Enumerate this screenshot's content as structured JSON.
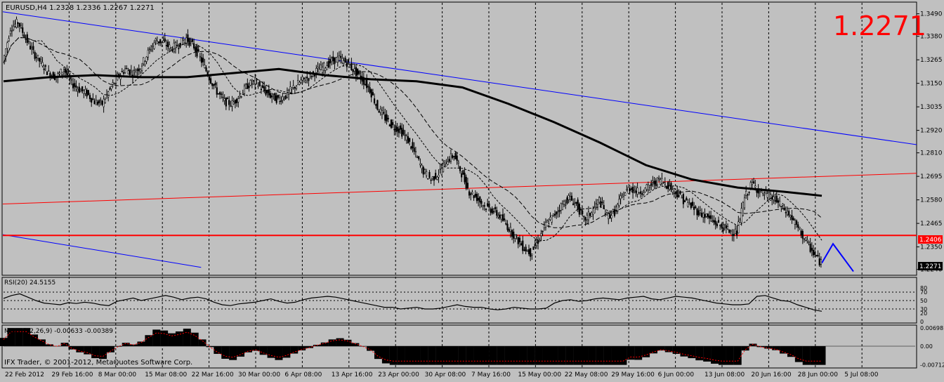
{
  "header": {
    "symbol_info": "EURUSD,H4  1.2328 1.2336 1.2267 1.2271"
  },
  "price_display": "1.2271",
  "footer": {
    "copyright": "IFX Trader, © 2001-2012, MetaQuotes Software Corp."
  },
  "colors": {
    "background": "#c0c0c0",
    "candles": "#000000",
    "trendline_blue": "#0000ff",
    "trendline_red": "#ff0000",
    "support_line": "#ff0000",
    "price_marker": "#ff0000",
    "projection": "#0000ff"
  },
  "chart_data": [
    {
      "type": "candlestick",
      "title": "EURUSD,H4",
      "ohlc_last": {
        "open": 1.2328,
        "high": 1.2336,
        "low": 1.2267,
        "close": 1.2271
      },
      "ylim": [
        1.2225,
        1.353
      ],
      "y_ticks": [
        "1.3490",
        "1.3380",
        "1.3265",
        "1.3150",
        "1.3035",
        "1.2920",
        "1.2810",
        "1.2695",
        "1.2580",
        "1.2465",
        "1.2350",
        "1.2240"
      ],
      "x_ticks": [
        "22 Feb 2012",
        "29 Feb 16:00",
        "8 Mar 00:00",
        "15 Mar 08:00",
        "22 Mar 16:00",
        "30 Mar 00:00",
        "6 Apr 08:00",
        "13 Apr 16:00",
        "23 Apr 00:00",
        "30 Apr 08:00",
        "7 May 16:00",
        "15 May 00:00",
        "22 May 08:00",
        "29 May 16:00",
        "6 Jun 00:00",
        "13 Jun 08:00",
        "20 Jun 16:00",
        "28 Jun 00:00",
        "5 Jul 08:00"
      ],
      "support_level": 1.2406,
      "support_label": "1.2406",
      "last_price_label": "1.2271",
      "close_path": [
        [
          0,
          1.325
        ],
        [
          1,
          1.342
        ],
        [
          2,
          1.345
        ],
        [
          3,
          1.337
        ],
        [
          4,
          1.33
        ],
        [
          5,
          1.325
        ],
        [
          6,
          1.32
        ],
        [
          7,
          1.318
        ],
        [
          8,
          1.322
        ],
        [
          9,
          1.315
        ],
        [
          10,
          1.312
        ],
        [
          11,
          1.31
        ],
        [
          12,
          1.306
        ],
        [
          13,
          1.305
        ],
        [
          14,
          1.312
        ],
        [
          15,
          1.318
        ],
        [
          16,
          1.322
        ],
        [
          17,
          1.32
        ],
        [
          18,
          1.323
        ],
        [
          19,
          1.33
        ],
        [
          20,
          1.336
        ],
        [
          21,
          1.335
        ],
        [
          22,
          1.332
        ],
        [
          23,
          1.334
        ],
        [
          24,
          1.337
        ],
        [
          25,
          1.333
        ],
        [
          26,
          1.326
        ],
        [
          27,
          1.318
        ],
        [
          28,
          1.311
        ],
        [
          29,
          1.306
        ],
        [
          30,
          1.305
        ],
        [
          31,
          1.309
        ],
        [
          32,
          1.314
        ],
        [
          33,
          1.316
        ],
        [
          34,
          1.312
        ],
        [
          35,
          1.309
        ],
        [
          36,
          1.307
        ],
        [
          37,
          1.309
        ],
        [
          38,
          1.313
        ],
        [
          39,
          1.316
        ],
        [
          40,
          1.318
        ],
        [
          41,
          1.321
        ],
        [
          42,
          1.323
        ],
        [
          43,
          1.326
        ],
        [
          44,
          1.327
        ],
        [
          45,
          1.325
        ],
        [
          46,
          1.321
        ],
        [
          47,
          1.317
        ],
        [
          48,
          1.312
        ],
        [
          49,
          1.303
        ],
        [
          50,
          1.298
        ],
        [
          51,
          1.294
        ],
        [
          52,
          1.292
        ],
        [
          53,
          1.287
        ],
        [
          54,
          1.28
        ],
        [
          55,
          1.272
        ],
        [
          56,
          1.268
        ],
        [
          57,
          1.271
        ],
        [
          58,
          1.277
        ],
        [
          59,
          1.28
        ],
        [
          60,
          1.271
        ],
        [
          61,
          1.262
        ],
        [
          62,
          1.259
        ],
        [
          63,
          1.255
        ],
        [
          64,
          1.253
        ],
        [
          65,
          1.25
        ],
        [
          66,
          1.245
        ],
        [
          67,
          1.24
        ],
        [
          68,
          1.235
        ],
        [
          69,
          1.232
        ],
        [
          70,
          1.238
        ],
        [
          71,
          1.246
        ],
        [
          72,
          1.25
        ],
        [
          73,
          1.255
        ],
        [
          74,
          1.259
        ],
        [
          75,
          1.256
        ],
        [
          76,
          1.248
        ],
        [
          77,
          1.252
        ],
        [
          78,
          1.258
        ],
        [
          79,
          1.25
        ],
        [
          80,
          1.252
        ],
        [
          81,
          1.26
        ],
        [
          82,
          1.264
        ],
        [
          83,
          1.262
        ],
        [
          84,
          1.263
        ],
        [
          85,
          1.266
        ],
        [
          86,
          1.268
        ],
        [
          87,
          1.265
        ],
        [
          88,
          1.262
        ],
        [
          89,
          1.258
        ],
        [
          90,
          1.255
        ],
        [
          91,
          1.252
        ],
        [
          92,
          1.25
        ],
        [
          93,
          1.247
        ],
        [
          94,
          1.245
        ],
        [
          95,
          1.243
        ],
        [
          96,
          1.242
        ],
        [
          97,
          1.259
        ],
        [
          98,
          1.266
        ],
        [
          99,
          1.262
        ],
        [
          100,
          1.26
        ],
        [
          101,
          1.258
        ],
        [
          102,
          1.254
        ],
        [
          103,
          1.25
        ],
        [
          104,
          1.244
        ],
        [
          105,
          1.238
        ],
        [
          106,
          1.232
        ],
        [
          107,
          1.2271
        ]
      ],
      "moving_average_slow": [
        [
          0,
          1.316
        ],
        [
          6,
          1.318
        ],
        [
          12,
          1.319
        ],
        [
          18,
          1.318
        ],
        [
          24,
          1.318
        ],
        [
          30,
          1.32
        ],
        [
          36,
          1.322
        ],
        [
          42,
          1.319
        ],
        [
          48,
          1.317
        ],
        [
          54,
          1.316
        ],
        [
          60,
          1.313
        ],
        [
          66,
          1.305
        ],
        [
          72,
          1.296
        ],
        [
          78,
          1.286
        ],
        [
          84,
          1.275
        ],
        [
          90,
          1.268
        ],
        [
          96,
          1.264
        ],
        [
          102,
          1.262
        ],
        [
          107,
          1.26
        ]
      ],
      "trendlines": [
        {
          "color": "blue",
          "from": [
            0,
            1.35
          ],
          "to": [
            107,
            1.285
          ]
        },
        {
          "color": "blue",
          "from": [
            0,
            1.241
          ],
          "to": [
            24,
            1.225
          ]
        },
        {
          "color": "red",
          "from": [
            0,
            1.256
          ],
          "to": [
            107,
            1.271
          ]
        }
      ],
      "projection": [
        [
          1.2271
        ],
        [
          1.2365
        ],
        [
          1.223
        ]
      ]
    },
    {
      "type": "line",
      "title": "RSI(20) 24.5155",
      "y_ticks": [
        "80",
        "70",
        "50",
        "30",
        "20",
        "0"
      ],
      "ylim": [
        0,
        100
      ],
      "series": [
        {
          "values": [
            55,
            62,
            66,
            58,
            50,
            44,
            42,
            40,
            45,
            43,
            46,
            44,
            40,
            38,
            48,
            52,
            56,
            50,
            54,
            58,
            62,
            58,
            52,
            56,
            58,
            54,
            46,
            40,
            38,
            42,
            44,
            46,
            50,
            54,
            48,
            44,
            46,
            52,
            56,
            58,
            60,
            58,
            54,
            50,
            46,
            42,
            38,
            34,
            34,
            30,
            32,
            34,
            30,
            30,
            32,
            36,
            40,
            36,
            34,
            34,
            30,
            28,
            30,
            34,
            32,
            30,
            30,
            32,
            44,
            50,
            52,
            48,
            50,
            54,
            56,
            54,
            52,
            56,
            58,
            60,
            54,
            52,
            56,
            60,
            58,
            56,
            52,
            48,
            44,
            42,
            40,
            40,
            42,
            60,
            62,
            56,
            50,
            48,
            40,
            34,
            28,
            24.5
          ]
        }
      ]
    },
    {
      "type": "bar",
      "title": "MACD(12,26,9) -0.00633 -0.00389",
      "y_ticks": [
        "0.00698",
        "0.00",
        "-0.00712"
      ],
      "ylim": [
        -0.00712,
        0.00698
      ]
    }
  ]
}
